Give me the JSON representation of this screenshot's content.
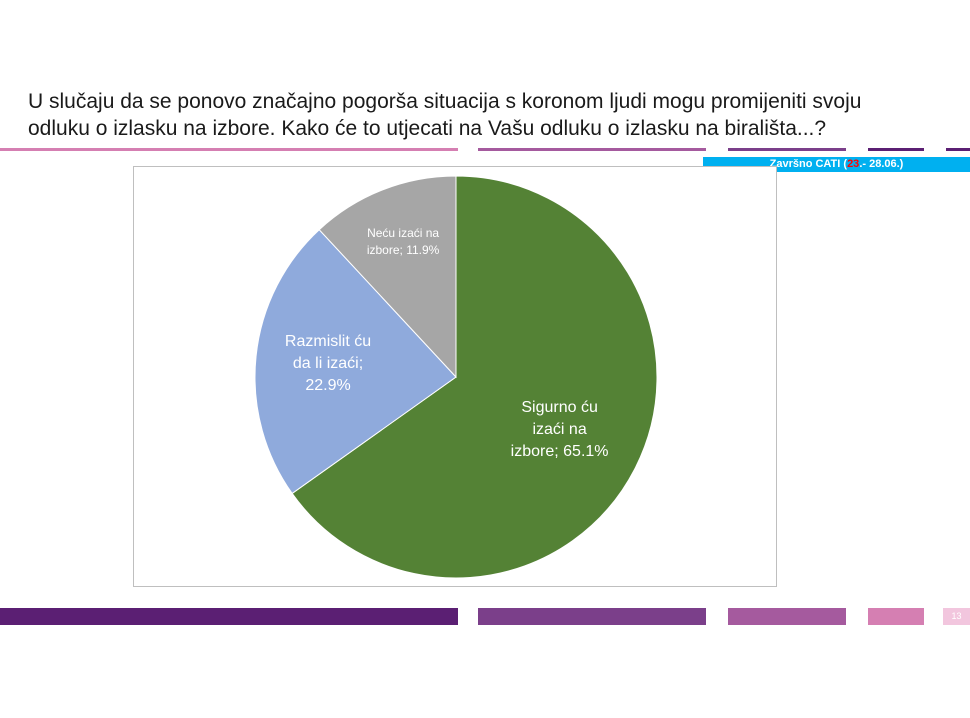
{
  "slide": {
    "title": "U slučaju da se ponovo značajno pogorša situacija s koronom ljudi mogu promijeniti svoju\nodluku o izlasku na izbore. Kako će to utjecati na Vašu odluku o izlasku na birališta...?",
    "badge_prefix": "Završno CATI (",
    "badge_highlight": "23",
    "badge_suffix": ".- 28.06.)",
    "page_number": "13"
  },
  "colors": {
    "purple_dark": "#5b1f73",
    "purple_mid": "#7b3f8a",
    "purple_light": "#a55a9e",
    "pink": "#d57fb2",
    "accent_blue": "#00b0f0"
  },
  "chart_data": {
    "type": "pie",
    "title": "",
    "slices": [
      {
        "label": "Sigurno ću izaći na izbore; 65.1%",
        "name": "Sigurno ću izaći na izbore",
        "value": 65.1,
        "color": "#548235"
      },
      {
        "label": "Razmislit ću da li izaći; 22.9%",
        "name": "Razmislit ću da li izaći",
        "value": 22.9,
        "color": "#8faadc"
      },
      {
        "label": "Neću izaći na izbore; 11.9%",
        "name": "Neću izaći na izbore",
        "value": 11.9,
        "color": "#a6a6a6"
      }
    ],
    "label_lines": [
      [
        "Sigurno ću",
        "izaći na",
        "izbore; 65.1%"
      ],
      [
        "Razmislit ću",
        "da li izaći;",
        "22.9%"
      ],
      [
        "Neću izaći na",
        "izbore; 11.9%"
      ]
    ],
    "start_angle_deg": 0,
    "direction": "clockwise",
    "legend": "none"
  }
}
